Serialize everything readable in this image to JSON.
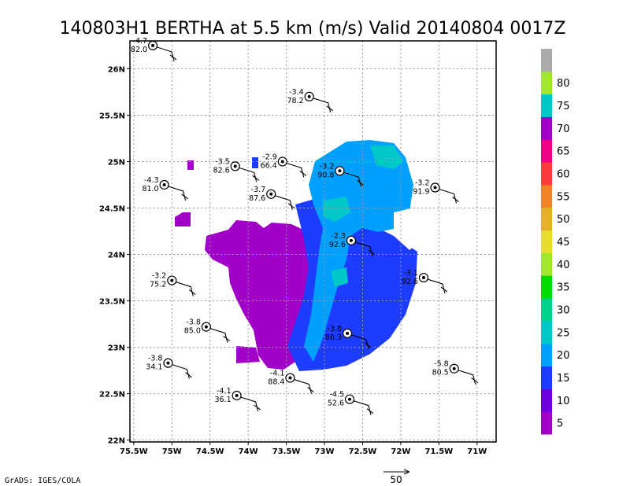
{
  "title": "140803H1 BERTHA at 5.5 km (m/s) Valid 20140804 0017Z",
  "credit": "GrADS: IGES/COLA",
  "vector_scale_label": "50",
  "chart_data": {
    "type": "map",
    "xlim": [
      -75.55,
      -70.75
    ],
    "ylim": [
      21.98,
      26.3
    ],
    "grid": true,
    "x_ticks": [
      {
        "value": -75.5,
        "label": "75.5W"
      },
      {
        "value": -75.0,
        "label": "75W"
      },
      {
        "value": -74.5,
        "label": "74.5W"
      },
      {
        "value": -74.0,
        "label": "74W"
      },
      {
        "value": -73.5,
        "label": "73.5W"
      },
      {
        "value": -73.0,
        "label": "73W"
      },
      {
        "value": -72.5,
        "label": "72.5W"
      },
      {
        "value": -72.0,
        "label": "72W"
      },
      {
        "value": -71.5,
        "label": "71.5W"
      },
      {
        "value": -71.0,
        "label": "71W"
      }
    ],
    "y_ticks": [
      {
        "value": 22.0,
        "label": "22N"
      },
      {
        "value": 22.5,
        "label": "22.5N"
      },
      {
        "value": 23.0,
        "label": "23N"
      },
      {
        "value": 23.5,
        "label": "23.5N"
      },
      {
        "value": 24.0,
        "label": "24N"
      },
      {
        "value": 24.5,
        "label": "24.5N"
      },
      {
        "value": 25.0,
        "label": "25N"
      },
      {
        "value": 25.5,
        "label": "25.5N"
      },
      {
        "value": 26.0,
        "label": "26N"
      }
    ],
    "colorbar": [
      {
        "label": "5",
        "color": "#a000c8"
      },
      {
        "label": "10",
        "color": "#6e00dc"
      },
      {
        "label": "15",
        "color": "#1e3cff"
      },
      {
        "label": "20",
        "color": "#00a0ff"
      },
      {
        "label": "25",
        "color": "#00c8c8"
      },
      {
        "label": "30",
        "color": "#00d28c"
      },
      {
        "label": "35",
        "color": "#00dc00"
      },
      {
        "label": "40",
        "color": "#a0e632"
      },
      {
        "label": "45",
        "color": "#e6dc32"
      },
      {
        "label": "50",
        "color": "#e6af2d"
      },
      {
        "label": "55",
        "color": "#f08228"
      },
      {
        "label": "60",
        "color": "#fa3c3c"
      },
      {
        "label": "65",
        "color": "#f00082"
      },
      {
        "label": "70",
        "color": "#a000c8"
      },
      {
        "label": "75",
        "color": "#00c8c8"
      },
      {
        "label": "80",
        "color": "#a0e632"
      },
      {
        "label": "",
        "color": "#aaaaaa"
      }
    ],
    "observations": [
      {
        "lon": -75.25,
        "lat": 26.25,
        "top": "-4.7",
        "bottom": "82.0"
      },
      {
        "lon": -73.2,
        "lat": 25.7,
        "top": "-3.4",
        "bottom": "78.2"
      },
      {
        "lon": -74.17,
        "lat": 24.95,
        "top": "-3.5",
        "bottom": "82.6"
      },
      {
        "lon": -73.55,
        "lat": 25.0,
        "top": "-2.9",
        "bottom": "66.4"
      },
      {
        "lon": -72.8,
        "lat": 24.9,
        "top": "-3.2",
        "bottom": "90.8"
      },
      {
        "lon": -75.1,
        "lat": 24.75,
        "top": "-4.3",
        "bottom": "81.0"
      },
      {
        "lon": -73.7,
        "lat": 24.65,
        "top": "-3.7",
        "bottom": "87.6"
      },
      {
        "lon": -71.55,
        "lat": 24.72,
        "top": "-3.2",
        "bottom": "91.9"
      },
      {
        "lon": -72.65,
        "lat": 24.15,
        "top": "-2.3",
        "bottom": "92.6"
      },
      {
        "lon": -71.7,
        "lat": 23.75,
        "top": "-3.1",
        "bottom": "92.6"
      },
      {
        "lon": -75.0,
        "lat": 23.72,
        "top": "-3.2",
        "bottom": "75.2"
      },
      {
        "lon": -74.55,
        "lat": 23.22,
        "top": "-3.8",
        "bottom": "85.0"
      },
      {
        "lon": -72.7,
        "lat": 23.15,
        "top": "-3.8",
        "bottom": "86.3"
      },
      {
        "lon": -75.05,
        "lat": 22.83,
        "top": "-3.8",
        "bottom": "34.1"
      },
      {
        "lon": -73.45,
        "lat": 22.67,
        "top": "-4.1",
        "bottom": "88.4"
      },
      {
        "lon": -71.3,
        "lat": 22.77,
        "top": "-5.8",
        "bottom": "80.5"
      },
      {
        "lon": -74.15,
        "lat": 22.48,
        "top": "-4.1",
        "bottom": "36.1"
      },
      {
        "lon": -72.67,
        "lat": 22.44,
        "top": "-4.5",
        "bottom": "52.6"
      }
    ]
  }
}
